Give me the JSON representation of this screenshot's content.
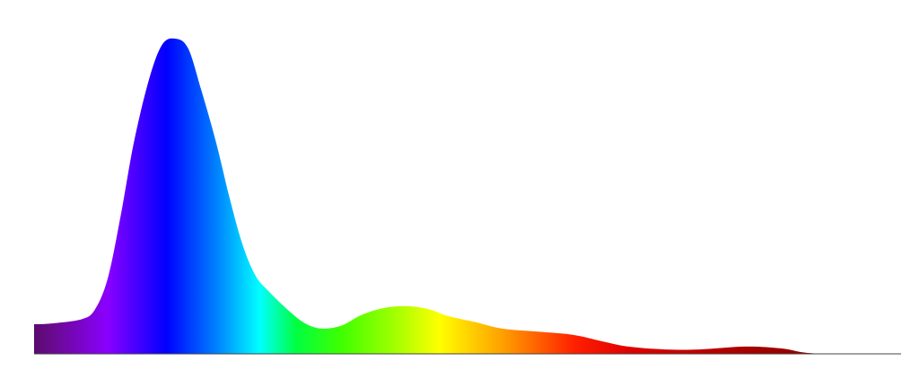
{
  "chart_data": {
    "type": "area",
    "x": [
      380,
      389,
      402,
      408,
      414,
      420,
      426,
      433,
      439,
      445,
      451,
      457,
      464,
      470,
      476,
      482,
      488,
      497,
      505,
      513,
      522,
      530,
      538,
      546,
      555,
      563,
      571,
      584,
      596,
      613,
      629,
      642,
      654,
      671,
      687,
      708,
      725,
      737,
      758,
      780
    ],
    "values": [
      9.4,
      9.7,
      11,
      14,
      24,
      44,
      67,
      87,
      98,
      100,
      97,
      84,
      67,
      50,
      35,
      25,
      20,
      14,
      9.7,
      8,
      9,
      12,
      14,
      15,
      15,
      14,
      12,
      10,
      8,
      7,
      6,
      4,
      2.3,
      1.4,
      1.4,
      2.3,
      1.7,
      0.3,
      0,
      0
    ],
    "xlim": [
      380,
      780
    ],
    "ylim": [
      0,
      100
    ],
    "gradient": [
      {
        "x": 380,
        "color": "#5a0a6e"
      },
      {
        "x": 389,
        "color": "#6a0a90"
      },
      {
        "x": 414,
        "color": "#8a00ff"
      },
      {
        "x": 441,
        "color": "#0000ff"
      },
      {
        "x": 464,
        "color": "#0080ff"
      },
      {
        "x": 484,
        "color": "#00ffff"
      },
      {
        "x": 501,
        "color": "#00ff40"
      },
      {
        "x": 522,
        "color": "#40ff00"
      },
      {
        "x": 546,
        "color": "#a0ff00"
      },
      {
        "x": 567,
        "color": "#ffff00"
      },
      {
        "x": 596,
        "color": "#ffa000"
      },
      {
        "x": 629,
        "color": "#ff2000"
      },
      {
        "x": 654,
        "color": "#e00000"
      },
      {
        "x": 716,
        "color": "#a00000"
      },
      {
        "x": 780,
        "color": "#700000"
      }
    ]
  }
}
